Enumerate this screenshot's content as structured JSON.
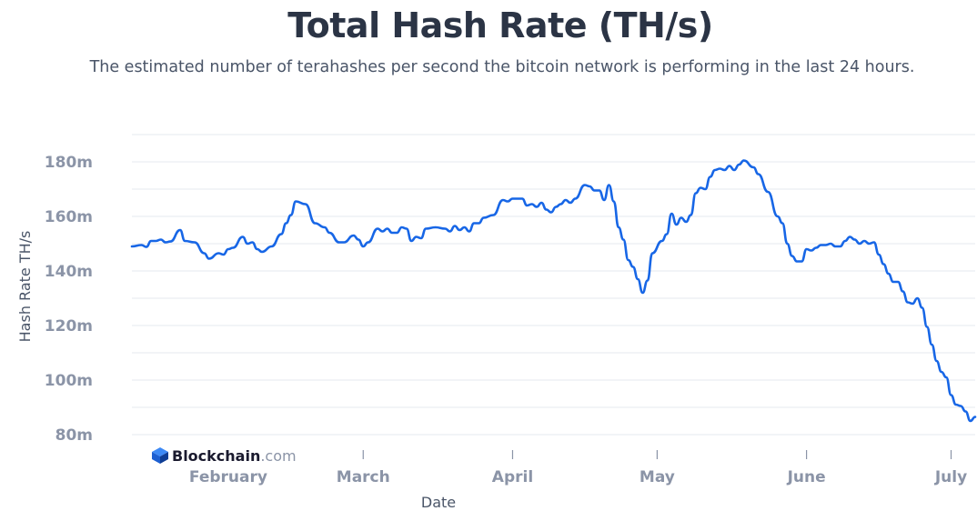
{
  "chart_data": {
    "type": "line",
    "title": "Total Hash Rate (TH/s)",
    "subtitle": "The estimated number of terahashes per second the bitcoin network is performing in the last 24 hours.",
    "xlabel": "Date",
    "ylabel": "Hash Rate TH/s",
    "ylim": [
      80000000,
      190000000
    ],
    "y_ticks": [
      {
        "value": 80000000,
        "label": "80m"
      },
      {
        "value": 100000000,
        "label": "100m"
      },
      {
        "value": 120000000,
        "label": "120m"
      },
      {
        "value": 140000000,
        "label": "140m"
      },
      {
        "value": 160000000,
        "label": "160m"
      },
      {
        "value": 180000000,
        "label": "180m"
      }
    ],
    "x_range": [
      "2022-01-12",
      "2022-07-06"
    ],
    "x_ticks": [
      {
        "value": "2022-02-01",
        "label": "February"
      },
      {
        "value": "2022-03-01",
        "label": "March"
      },
      {
        "value": "2022-04-01",
        "label": "April"
      },
      {
        "value": "2022-05-01",
        "label": "May"
      },
      {
        "value": "2022-06-01",
        "label": "June"
      },
      {
        "value": "2022-07-01",
        "label": "July"
      }
    ],
    "grid": true,
    "line_color": "#1766e6",
    "series": [
      {
        "points": [
          [
            "2022-01-12",
            149.0
          ],
          [
            "2022-01-14",
            149.5
          ],
          [
            "2022-01-15",
            148.8
          ],
          [
            "2022-01-16",
            151.0
          ],
          [
            "2022-01-17",
            151.0
          ],
          [
            "2022-01-18",
            151.5
          ],
          [
            "2022-01-19",
            150.5
          ],
          [
            "2022-01-20",
            150.8
          ],
          [
            "2022-01-22",
            155.0
          ],
          [
            "2022-01-23",
            151.0
          ],
          [
            "2022-01-25",
            150.5
          ],
          [
            "2022-01-27",
            146.5
          ],
          [
            "2022-01-28",
            144.5
          ],
          [
            "2022-01-30",
            146.5
          ],
          [
            "2022-01-31",
            146.0
          ],
          [
            "2022-02-01",
            148.0
          ],
          [
            "2022-02-02",
            148.5
          ],
          [
            "2022-02-04",
            152.5
          ],
          [
            "2022-02-05",
            150.0
          ],
          [
            "2022-02-06",
            150.5
          ],
          [
            "2022-02-07",
            148.0
          ],
          [
            "2022-02-08",
            147.0
          ],
          [
            "2022-02-10",
            149.0
          ],
          [
            "2022-02-12",
            153.5
          ],
          [
            "2022-02-13",
            157.5
          ],
          [
            "2022-02-14",
            160.5
          ],
          [
            "2022-02-15",
            165.5
          ],
          [
            "2022-02-17",
            164.5
          ],
          [
            "2022-02-19",
            157.5
          ],
          [
            "2022-02-21",
            156.0
          ],
          [
            "2022-02-22",
            154.0
          ],
          [
            "2022-02-24",
            150.5
          ],
          [
            "2022-02-25",
            150.5
          ],
          [
            "2022-02-27",
            153.0
          ],
          [
            "2022-02-28",
            151.5
          ],
          [
            "2022-03-01",
            149.0
          ],
          [
            "2022-03-02",
            150.5
          ],
          [
            "2022-03-04",
            155.5
          ],
          [
            "2022-03-05",
            154.5
          ],
          [
            "2022-03-06",
            155.5
          ],
          [
            "2022-03-07",
            154.0
          ],
          [
            "2022-03-08",
            154.0
          ],
          [
            "2022-03-09",
            156.0
          ],
          [
            "2022-03-10",
            155.5
          ],
          [
            "2022-03-11",
            151.0
          ],
          [
            "2022-03-12",
            152.5
          ],
          [
            "2022-03-13",
            152.0
          ],
          [
            "2022-03-14",
            155.5
          ],
          [
            "2022-03-16",
            156.0
          ],
          [
            "2022-03-18",
            155.5
          ],
          [
            "2022-03-19",
            154.5
          ],
          [
            "2022-03-20",
            156.5
          ],
          [
            "2022-03-21",
            155.0
          ],
          [
            "2022-03-22",
            156.0
          ],
          [
            "2022-03-23",
            154.5
          ],
          [
            "2022-03-24",
            157.5
          ],
          [
            "2022-03-25",
            157.5
          ],
          [
            "2022-03-26",
            159.5
          ],
          [
            "2022-03-28",
            160.5
          ],
          [
            "2022-03-30",
            166.0
          ],
          [
            "2022-03-31",
            165.5
          ],
          [
            "2022-04-01",
            166.5
          ],
          [
            "2022-04-03",
            166.5
          ],
          [
            "2022-04-04",
            164.0
          ],
          [
            "2022-04-05",
            164.5
          ],
          [
            "2022-04-06",
            163.5
          ],
          [
            "2022-04-07",
            165.0
          ],
          [
            "2022-04-08",
            162.5
          ],
          [
            "2022-04-09",
            161.5
          ],
          [
            "2022-04-10",
            163.5
          ],
          [
            "2022-04-11",
            164.5
          ],
          [
            "2022-04-12",
            166.0
          ],
          [
            "2022-04-13",
            165.0
          ],
          [
            "2022-04-14",
            166.5
          ],
          [
            "2022-04-16",
            171.5
          ],
          [
            "2022-04-17",
            171.0
          ],
          [
            "2022-04-18",
            169.5
          ],
          [
            "2022-04-19",
            169.5
          ],
          [
            "2022-04-20",
            166.0
          ],
          [
            "2022-04-21",
            171.5
          ],
          [
            "2022-04-22",
            165.5
          ],
          [
            "2022-04-23",
            156.0
          ],
          [
            "2022-04-24",
            151.5
          ],
          [
            "2022-04-25",
            144.0
          ],
          [
            "2022-04-26",
            141.5
          ],
          [
            "2022-04-27",
            137.0
          ],
          [
            "2022-04-28",
            132.0
          ],
          [
            "2022-04-29",
            136.5
          ],
          [
            "2022-04-30",
            146.5
          ],
          [
            "2022-05-02",
            151.0
          ],
          [
            "2022-05-03",
            153.5
          ],
          [
            "2022-05-04",
            161.0
          ],
          [
            "2022-05-05",
            157.0
          ],
          [
            "2022-05-06",
            159.5
          ],
          [
            "2022-05-07",
            158.0
          ],
          [
            "2022-05-08",
            160.5
          ],
          [
            "2022-05-09",
            168.5
          ],
          [
            "2022-05-10",
            170.5
          ],
          [
            "2022-05-11",
            170.0
          ],
          [
            "2022-05-12",
            174.5
          ],
          [
            "2022-05-13",
            177.0
          ],
          [
            "2022-05-14",
            177.5
          ],
          [
            "2022-05-15",
            177.0
          ],
          [
            "2022-05-16",
            178.5
          ],
          [
            "2022-05-17",
            177.0
          ],
          [
            "2022-05-18",
            179.0
          ],
          [
            "2022-05-19",
            180.5
          ],
          [
            "2022-05-21",
            178.0
          ],
          [
            "2022-05-22",
            175.5
          ],
          [
            "2022-05-24",
            169.0
          ],
          [
            "2022-05-26",
            160.0
          ],
          [
            "2022-05-27",
            157.5
          ],
          [
            "2022-05-28",
            150.0
          ],
          [
            "2022-05-29",
            145.5
          ],
          [
            "2022-05-30",
            143.5
          ],
          [
            "2022-05-31",
            143.5
          ],
          [
            "2022-06-01",
            148.0
          ],
          [
            "2022-06-02",
            147.5
          ],
          [
            "2022-06-03",
            148.5
          ],
          [
            "2022-06-04",
            149.5
          ],
          [
            "2022-06-05",
            149.5
          ],
          [
            "2022-06-06",
            150.0
          ],
          [
            "2022-06-07",
            149.0
          ],
          [
            "2022-06-08",
            149.0
          ],
          [
            "2022-06-09",
            151.0
          ],
          [
            "2022-06-10",
            152.5
          ],
          [
            "2022-06-11",
            151.5
          ],
          [
            "2022-06-12",
            150.0
          ],
          [
            "2022-06-13",
            151.0
          ],
          [
            "2022-06-14",
            150.0
          ],
          [
            "2022-06-15",
            150.5
          ],
          [
            "2022-06-16",
            146.0
          ],
          [
            "2022-06-17",
            142.5
          ],
          [
            "2022-06-18",
            139.0
          ],
          [
            "2022-06-19",
            136.0
          ],
          [
            "2022-06-20",
            136.0
          ],
          [
            "2022-06-21",
            132.5
          ],
          [
            "2022-06-22",
            128.5
          ],
          [
            "2022-06-23",
            128.0
          ],
          [
            "2022-06-24",
            130.0
          ],
          [
            "2022-06-25",
            126.5
          ],
          [
            "2022-06-26",
            119.5
          ],
          [
            "2022-06-27",
            113.0
          ],
          [
            "2022-06-28",
            107.0
          ],
          [
            "2022-06-29",
            103.0
          ],
          [
            "2022-06-30",
            101.0
          ],
          [
            "2022-07-01",
            94.5
          ],
          [
            "2022-07-02",
            91.0
          ],
          [
            "2022-07-03",
            90.5
          ],
          [
            "2022-07-04",
            88.5
          ],
          [
            "2022-07-05",
            85.0
          ],
          [
            "2022-07-06",
            86.5
          ]
        ]
      }
    ]
  },
  "watermark": {
    "brand": "Blockchain",
    "suffix": ".com",
    "icon": "blockchain-cube-icon"
  }
}
